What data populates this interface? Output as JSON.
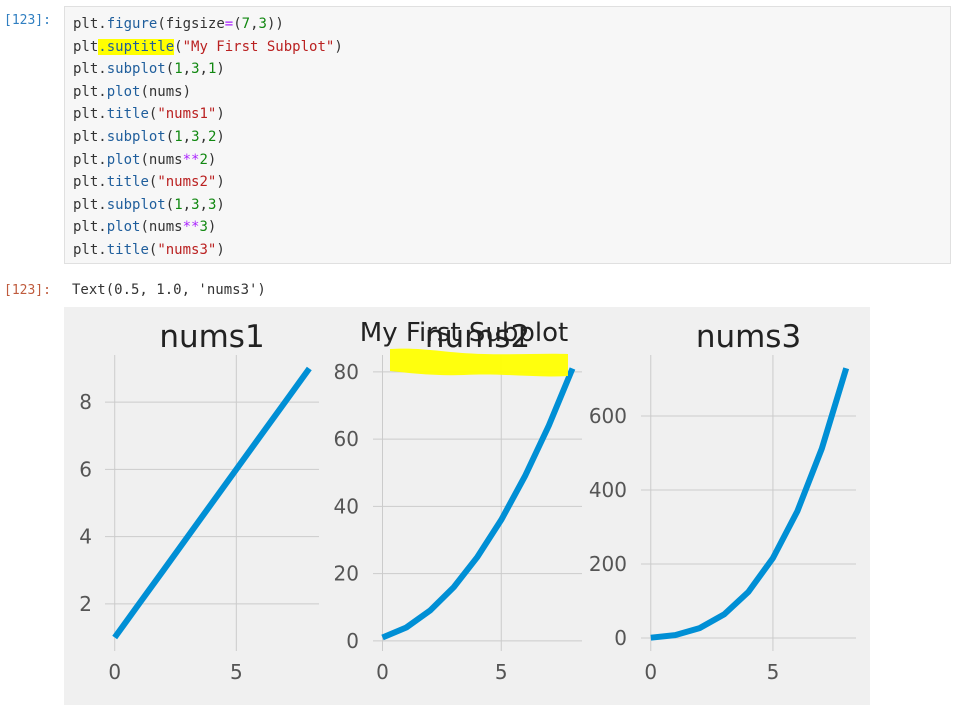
{
  "cell": {
    "in_prompt": "[123]:",
    "out_prompt": "[123]:",
    "code_lines": [
      [
        {
          "t": "plt",
          "c": "var"
        },
        {
          "t": ".",
          "c": "dot"
        },
        {
          "t": "figure",
          "c": "attr"
        },
        {
          "t": "(figsize",
          "c": "punc"
        },
        {
          "t": "=",
          "c": "op"
        },
        {
          "t": "(",
          "c": "punc"
        },
        {
          "t": "7",
          "c": "num"
        },
        {
          "t": ",",
          "c": "punc"
        },
        {
          "t": "3",
          "c": "num"
        },
        {
          "t": "))",
          "c": "punc"
        }
      ],
      [
        {
          "t": "plt",
          "c": "var"
        },
        {
          "t": ".suptitle",
          "c": "attr",
          "hl": true
        },
        {
          "t": "(",
          "c": "punc"
        },
        {
          "t": "\"My First Subplot\"",
          "c": "str"
        },
        {
          "t": ")",
          "c": "punc"
        }
      ],
      [
        {
          "t": "plt",
          "c": "var"
        },
        {
          "t": ".",
          "c": "dot"
        },
        {
          "t": "subplot",
          "c": "attr"
        },
        {
          "t": "(",
          "c": "punc"
        },
        {
          "t": "1",
          "c": "num"
        },
        {
          "t": ",",
          "c": "punc"
        },
        {
          "t": "3",
          "c": "num"
        },
        {
          "t": ",",
          "c": "punc"
        },
        {
          "t": "1",
          "c": "num"
        },
        {
          "t": ")",
          "c": "punc"
        }
      ],
      [
        {
          "t": "plt",
          "c": "var"
        },
        {
          "t": ".",
          "c": "dot"
        },
        {
          "t": "plot",
          "c": "attr"
        },
        {
          "t": "(nums)",
          "c": "punc"
        }
      ],
      [
        {
          "t": "plt",
          "c": "var"
        },
        {
          "t": ".",
          "c": "dot"
        },
        {
          "t": "title",
          "c": "attr"
        },
        {
          "t": "(",
          "c": "punc"
        },
        {
          "t": "\"nums1\"",
          "c": "str"
        },
        {
          "t": ")",
          "c": "punc"
        }
      ],
      [
        {
          "t": "plt",
          "c": "var"
        },
        {
          "t": ".",
          "c": "dot"
        },
        {
          "t": "subplot",
          "c": "attr"
        },
        {
          "t": "(",
          "c": "punc"
        },
        {
          "t": "1",
          "c": "num"
        },
        {
          "t": ",",
          "c": "punc"
        },
        {
          "t": "3",
          "c": "num"
        },
        {
          "t": ",",
          "c": "punc"
        },
        {
          "t": "2",
          "c": "num"
        },
        {
          "t": ")",
          "c": "punc"
        }
      ],
      [
        {
          "t": "plt",
          "c": "var"
        },
        {
          "t": ".",
          "c": "dot"
        },
        {
          "t": "plot",
          "c": "attr"
        },
        {
          "t": "(nums",
          "c": "punc"
        },
        {
          "t": "**",
          "c": "op"
        },
        {
          "t": "2",
          "c": "num"
        },
        {
          "t": ")",
          "c": "punc"
        }
      ],
      [
        {
          "t": "plt",
          "c": "var"
        },
        {
          "t": ".",
          "c": "dot"
        },
        {
          "t": "title",
          "c": "attr"
        },
        {
          "t": "(",
          "c": "punc"
        },
        {
          "t": "\"nums2\"",
          "c": "str"
        },
        {
          "t": ")",
          "c": "punc"
        }
      ],
      [
        {
          "t": "plt",
          "c": "var"
        },
        {
          "t": ".",
          "c": "dot"
        },
        {
          "t": "subplot",
          "c": "attr"
        },
        {
          "t": "(",
          "c": "punc"
        },
        {
          "t": "1",
          "c": "num"
        },
        {
          "t": ",",
          "c": "punc"
        },
        {
          "t": "3",
          "c": "num"
        },
        {
          "t": ",",
          "c": "punc"
        },
        {
          "t": "3",
          "c": "num"
        },
        {
          "t": ")",
          "c": "punc"
        }
      ],
      [
        {
          "t": "plt",
          "c": "var"
        },
        {
          "t": ".",
          "c": "dot"
        },
        {
          "t": "plot",
          "c": "attr"
        },
        {
          "t": "(nums",
          "c": "punc"
        },
        {
          "t": "**",
          "c": "op"
        },
        {
          "t": "3",
          "c": "num"
        },
        {
          "t": ")",
          "c": "punc"
        }
      ],
      [
        {
          "t": "plt",
          "c": "var"
        },
        {
          "t": ".",
          "c": "dot"
        },
        {
          "t": "title",
          "c": "attr"
        },
        {
          "t": "(",
          "c": "punc"
        },
        {
          "t": "\"nums3\"",
          "c": "str"
        },
        {
          "t": ")",
          "c": "punc"
        }
      ]
    ],
    "output_text": "Text(0.5, 1.0, 'nums3')"
  },
  "colors": {
    "line": "#008fd5",
    "grid": "#cbcbcb",
    "tick_text": "#555555",
    "title_text": "#222222",
    "highlight": "#ffff00"
  },
  "chart_data": [
    {
      "type": "line",
      "title": "nums1",
      "x": [
        0,
        1,
        2,
        3,
        4,
        5,
        6,
        7,
        8
      ],
      "y": [
        1,
        2,
        3,
        4,
        5,
        6,
        7,
        8,
        9
      ],
      "xticks": [
        0,
        5
      ],
      "yticks": [
        2,
        4,
        6,
        8
      ],
      "xlim": [
        -0.4,
        8.4
      ],
      "ylim": [
        0.6,
        9.4
      ]
    },
    {
      "type": "line",
      "title": "nums2",
      "x": [
        0,
        1,
        2,
        3,
        4,
        5,
        6,
        7,
        8
      ],
      "y": [
        1,
        4,
        9,
        16,
        25,
        36,
        49,
        64,
        81
      ],
      "xticks": [
        0,
        5
      ],
      "yticks": [
        0,
        20,
        40,
        60,
        80
      ],
      "xlim": [
        -0.4,
        8.4
      ],
      "ylim": [
        -3,
        85
      ]
    },
    {
      "type": "line",
      "title": "nums3",
      "x": [
        0,
        1,
        2,
        3,
        4,
        5,
        6,
        7,
        8
      ],
      "y": [
        1,
        8,
        27,
        64,
        125,
        216,
        343,
        512,
        729
      ],
      "xticks": [
        0,
        5
      ],
      "yticks": [
        0,
        200,
        400,
        600
      ],
      "xlim": [
        -0.4,
        8.4
      ],
      "ylim": [
        -35,
        765
      ]
    }
  ],
  "figure": {
    "suptitle": "My First Subplot"
  }
}
